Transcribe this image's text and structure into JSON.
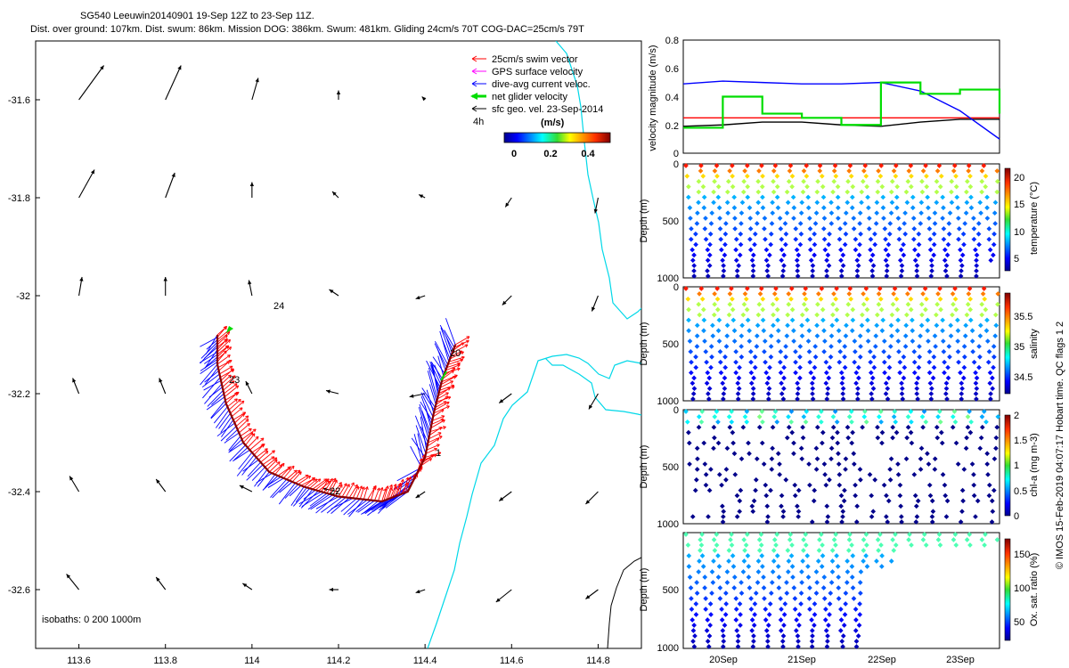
{
  "header": {
    "line1": "SG540 Leeuwin20140901 19-Sep 12Z to 23-Sep 11Z.",
    "line2": "Dist. over ground: 107km. Dist. swum: 86km. Mission DOG: 386km. Swum: 481km. Gliding 24cm/s 70T COG-DAC=25cm/s 79T"
  },
  "side_text": "© IMOS 15-Feb-2019 04:07:17 Hobart time. QC flags 1  2",
  "colors": {
    "swim": "#ff0000",
    "gps": "#ff00ff",
    "dac": "#0000ff",
    "net": "#00dd00",
    "geo": "#000000",
    "coast": "#00d8e8",
    "track": "#8b0000",
    "dots": "#00008b"
  },
  "map": {
    "legend": {
      "entries": [
        {
          "label": "25cm/s swim vector",
          "color": "#ff0000"
        },
        {
          "label": "GPS surface velocity",
          "color": "#ff00ff"
        },
        {
          "label": "dive-avg current veloc.",
          "color": "#0000ff"
        },
        {
          "label": "net glider velocity",
          "color": "#00dd00"
        },
        {
          "label": "sfc geo. vel. 23-Sep-2014",
          "color": "#000000"
        }
      ],
      "interval": "4h"
    },
    "colorbar": {
      "title": "(m/s)",
      "ticks": [
        "0",
        "0.2",
        "0.4"
      ]
    },
    "isobaths_label": "isobaths: 0   200  1000m",
    "x_ticks": [
      "113.6",
      "113.8",
      "114",
      "114.2",
      "114.4",
      "114.6",
      "114.8"
    ],
    "y_ticks": [
      "-31.6",
      "-31.8",
      "-32",
      "-32.2",
      "-32.4",
      "-32.6"
    ],
    "track_labels": [
      "24",
      "20",
      "23",
      "1",
      "22"
    ],
    "x_range": [
      113.5,
      114.9
    ],
    "y_range": [
      -32.72,
      -31.48
    ]
  },
  "panels": {
    "velocity": {
      "ylabel": "velocity magnitude (m/s)",
      "ticks": [
        "0.8",
        "0.6",
        "0.4",
        "0.2",
        "0"
      ]
    },
    "temperature": {
      "label": "temperature (°C)",
      "ticks": [
        "20",
        "15",
        "10",
        "5"
      ]
    },
    "salinity": {
      "label": "salinity",
      "ticks": [
        "35.5",
        "35",
        "34.5"
      ]
    },
    "chl": {
      "label": "chl-a (mg m-3)",
      "ticks": [
        "2",
        "1.5",
        "1",
        "0.5",
        "0"
      ]
    },
    "oxygen": {
      "label": "Ox. sat. ratio (%)",
      "ticks": [
        "150",
        "100",
        "50"
      ]
    },
    "depth_label": "Depth (m)",
    "depth_ticks": [
      "0",
      "500",
      "1000"
    ],
    "x_ticks": [
      "20Sep",
      "21Sep",
      "22Sep",
      "23Sep"
    ]
  },
  "chart_data": [
    {
      "type": "scatter",
      "title": "SG540 Leeuwin20140901 19-Sep 12Z to 23-Sep 11Z.",
      "x_range": [
        113.5,
        114.9
      ],
      "y_range": [
        -32.72,
        -31.48
      ],
      "glider_track": [
        [
          113.92,
          -32.08
        ],
        [
          113.92,
          -32.14
        ],
        [
          113.94,
          -32.22
        ],
        [
          113.98,
          -32.3
        ],
        [
          114.04,
          -32.36
        ],
        [
          114.12,
          -32.39
        ],
        [
          114.2,
          -32.41
        ],
        [
          114.3,
          -32.42
        ],
        [
          114.36,
          -32.4
        ],
        [
          114.4,
          -32.33
        ],
        [
          114.42,
          -32.24
        ],
        [
          114.44,
          -32.17
        ],
        [
          114.47,
          -32.1
        ]
      ],
      "geostrophic_vectors": [
        {
          "x": 113.6,
          "y": -31.6,
          "u": 0.4,
          "v": 0.55
        },
        {
          "x": 113.8,
          "y": -31.6,
          "u": 0.25,
          "v": 0.55
        },
        {
          "x": 114.0,
          "y": -31.6,
          "u": 0.1,
          "v": 0.35
        },
        {
          "x": 114.2,
          "y": -31.6,
          "u": 0.0,
          "v": 0.15
        },
        {
          "x": 114.4,
          "y": -31.6,
          "u": -0.05,
          "v": 0.05
        },
        {
          "x": 113.6,
          "y": -31.8,
          "u": 0.25,
          "v": 0.45
        },
        {
          "x": 113.8,
          "y": -31.8,
          "u": 0.15,
          "v": 0.4
        },
        {
          "x": 114.0,
          "y": -31.8,
          "u": 0.0,
          "v": 0.25
        },
        {
          "x": 114.2,
          "y": -31.8,
          "u": -0.1,
          "v": 0.1
        },
        {
          "x": 114.4,
          "y": -31.8,
          "u": -0.1,
          "v": 0.05
        },
        {
          "x": 113.6,
          "y": -32.0,
          "u": 0.05,
          "v": 0.3
        },
        {
          "x": 113.8,
          "y": -32.0,
          "u": 0.0,
          "v": 0.3
        },
        {
          "x": 114.0,
          "y": -32.0,
          "u": -0.05,
          "v": 0.25
        },
        {
          "x": 114.2,
          "y": -32.0,
          "u": -0.15,
          "v": 0.1
        },
        {
          "x": 114.4,
          "y": -32.0,
          "u": -0.15,
          "v": -0.05
        },
        {
          "x": 113.6,
          "y": -32.2,
          "u": -0.1,
          "v": 0.25
        },
        {
          "x": 113.8,
          "y": -32.2,
          "u": -0.1,
          "v": 0.25
        },
        {
          "x": 114.0,
          "y": -32.2,
          "u": -0.1,
          "v": 0.2
        },
        {
          "x": 114.2,
          "y": -32.2,
          "u": -0.2,
          "v": 0.05
        },
        {
          "x": 114.4,
          "y": -32.2,
          "u": -0.25,
          "v": -0.05
        },
        {
          "x": 113.6,
          "y": -32.4,
          "u": -0.15,
          "v": 0.25
        },
        {
          "x": 113.8,
          "y": -32.4,
          "u": -0.15,
          "v": 0.2
        },
        {
          "x": 114.0,
          "y": -32.4,
          "u": -0.2,
          "v": 0.1
        },
        {
          "x": 114.2,
          "y": -32.4,
          "u": -0.25,
          "v": 0.05
        },
        {
          "x": 114.4,
          "y": -32.4,
          "u": -0.15,
          "v": -0.1
        },
        {
          "x": 113.6,
          "y": -32.6,
          "u": -0.2,
          "v": 0.25
        },
        {
          "x": 113.8,
          "y": -32.6,
          "u": -0.15,
          "v": 0.2
        },
        {
          "x": 114.0,
          "y": -32.6,
          "u": -0.15,
          "v": 0.1
        },
        {
          "x": 114.2,
          "y": -32.6,
          "u": -0.15,
          "v": 0.0
        },
        {
          "x": 114.4,
          "y": -32.6,
          "u": -0.15,
          "v": -0.05
        },
        {
          "x": 114.6,
          "y": -31.8,
          "u": -0.1,
          "v": -0.15
        },
        {
          "x": 114.6,
          "y": -32.0,
          "u": -0.15,
          "v": -0.15
        },
        {
          "x": 114.6,
          "y": -32.2,
          "u": -0.2,
          "v": -0.15
        },
        {
          "x": 114.6,
          "y": -32.4,
          "u": -0.2,
          "v": -0.15
        },
        {
          "x": 114.6,
          "y": -32.6,
          "u": -0.25,
          "v": -0.2
        },
        {
          "x": 114.8,
          "y": -31.8,
          "u": -0.05,
          "v": -0.25
        },
        {
          "x": 114.8,
          "y": -32.0,
          "u": -0.1,
          "v": -0.25
        },
        {
          "x": 114.8,
          "y": -32.2,
          "u": -0.15,
          "v": -0.25
        },
        {
          "x": 114.8,
          "y": -32.4,
          "u": -0.2,
          "v": -0.2
        },
        {
          "x": 114.8,
          "y": -32.6,
          "u": -0.2,
          "v": -0.15
        }
      ]
    },
    {
      "type": "line",
      "ylabel": "velocity magnitude (m/s)",
      "ylim": [
        0,
        0.8
      ],
      "x": [
        "19-Sep 12Z",
        "20-Sep 00Z",
        "20-Sep 12Z",
        "21-Sep 00Z",
        "21-Sep 12Z",
        "22-Sep 00Z",
        "22-Sep 12Z",
        "23-Sep 00Z",
        "23-Sep 11Z"
      ],
      "series": [
        {
          "values": [
            0.25,
            0.25,
            0.25,
            0.25,
            0.25,
            0.25,
            0.25,
            0.25,
            0.25
          ]
        },
        {
          "values": [
            0.19,
            0.2,
            0.22,
            0.22,
            0.2,
            0.19,
            0.22,
            0.24,
            0.24
          ]
        },
        {
          "values": [
            0.49,
            0.51,
            0.5,
            0.49,
            0.49,
            0.5,
            0.44,
            0.3,
            0.1
          ]
        },
        {
          "values": [
            0.18,
            0.4,
            0.28,
            0.25,
            0.2,
            0.5,
            0.42,
            0.45,
            0.28
          ]
        }
      ]
    }
  ]
}
